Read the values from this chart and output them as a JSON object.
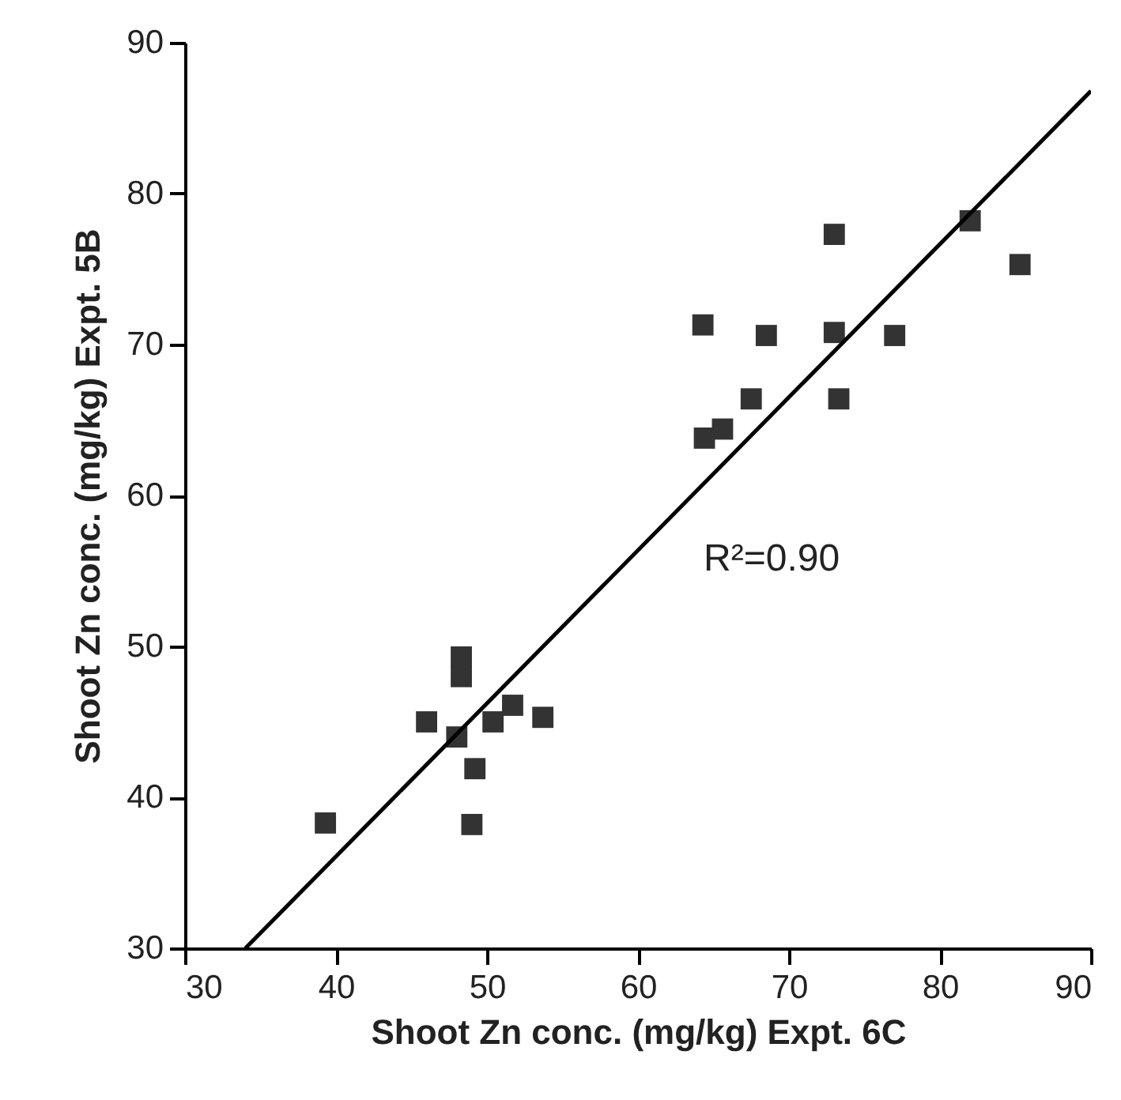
{
  "chart_data": {
    "type": "scatter",
    "xlabel": "Shoot Zn conc. (mg/kg) Expt. 6C",
    "ylabel": "Shoot Zn conc. (mg/kg) Expt. 5B",
    "xlim": [
      30,
      90
    ],
    "ylim": [
      30,
      90
    ],
    "xticks": [
      30,
      40,
      50,
      60,
      70,
      80,
      90
    ],
    "yticks": [
      30,
      40,
      50,
      60,
      70,
      80,
      90
    ],
    "grid": false,
    "marker": "square",
    "annotations": [
      "R²=0.90"
    ],
    "series": [
      {
        "color": "#333333",
        "x": [
          39.3,
          46,
          48,
          48.3,
          48.3,
          49,
          49.2,
          50.4,
          51.7,
          53.7,
          64.3,
          64.4,
          65.6,
          67.5,
          68.5,
          73,
          73,
          73.3,
          77,
          82,
          85.3
        ],
        "values": [
          38.3,
          45,
          44,
          49.3,
          48,
          38.2,
          41.9,
          45,
          46.1,
          45.3,
          71.3,
          63.8,
          64.4,
          66.4,
          70.6,
          77.3,
          70.8,
          66.4,
          70.6,
          78.2,
          75.3
        ]
      },
      {
        "type": "line",
        "color": "#000000",
        "marker": "none",
        "x": [
          34,
          90
        ],
        "values": [
          30,
          86.8
        ]
      }
    ]
  }
}
